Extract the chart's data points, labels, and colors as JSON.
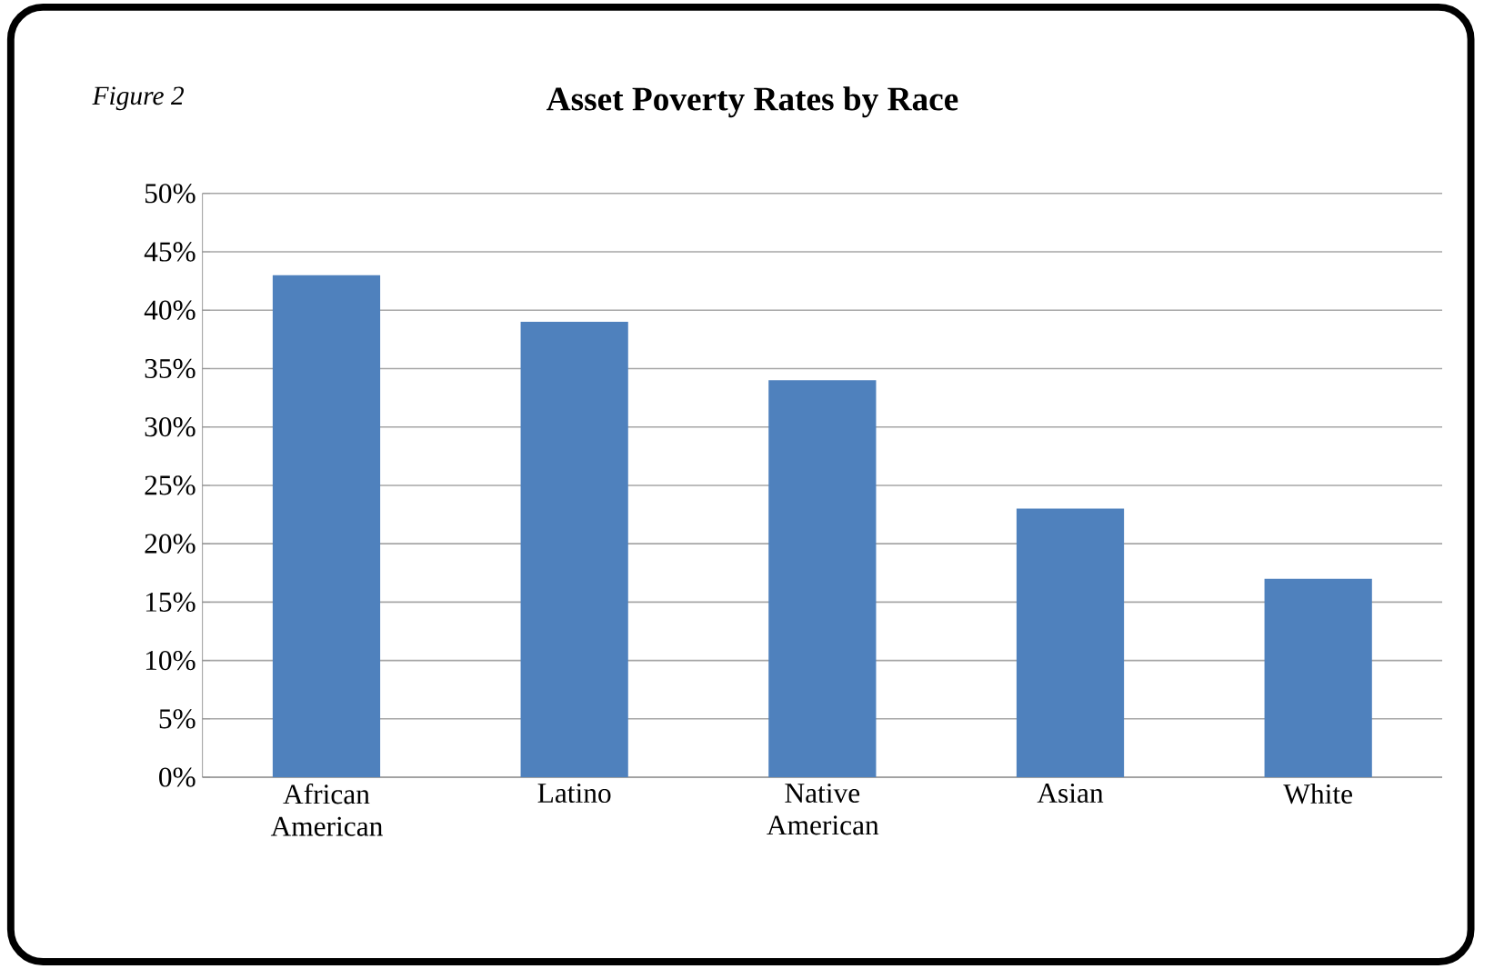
{
  "chart_data": {
    "type": "bar",
    "title": "Asset Poverty Rates by Race",
    "annotations": [
      "Figure 2"
    ],
    "categories": [
      "African American",
      "Latino",
      "Native American",
      "Asian",
      "White"
    ],
    "values": [
      43,
      39,
      34,
      23,
      17
    ],
    "color": "#4f81bd",
    "ylim": [
      0,
      50
    ],
    "yticks": [
      {
        "value": 0,
        "label": "0%"
      },
      {
        "value": 5,
        "label": "5%"
      },
      {
        "value": 10,
        "label": "10%"
      },
      {
        "value": 15,
        "label": "15%"
      },
      {
        "value": 20,
        "label": "20%"
      },
      {
        "value": 25,
        "label": "25%"
      },
      {
        "value": 30,
        "label": "30%"
      },
      {
        "value": 35,
        "label": "35%"
      },
      {
        "value": 40,
        "label": "40%"
      },
      {
        "value": 45,
        "label": "45%"
      },
      {
        "value": 50,
        "label": "50%"
      }
    ],
    "grid": "y"
  }
}
